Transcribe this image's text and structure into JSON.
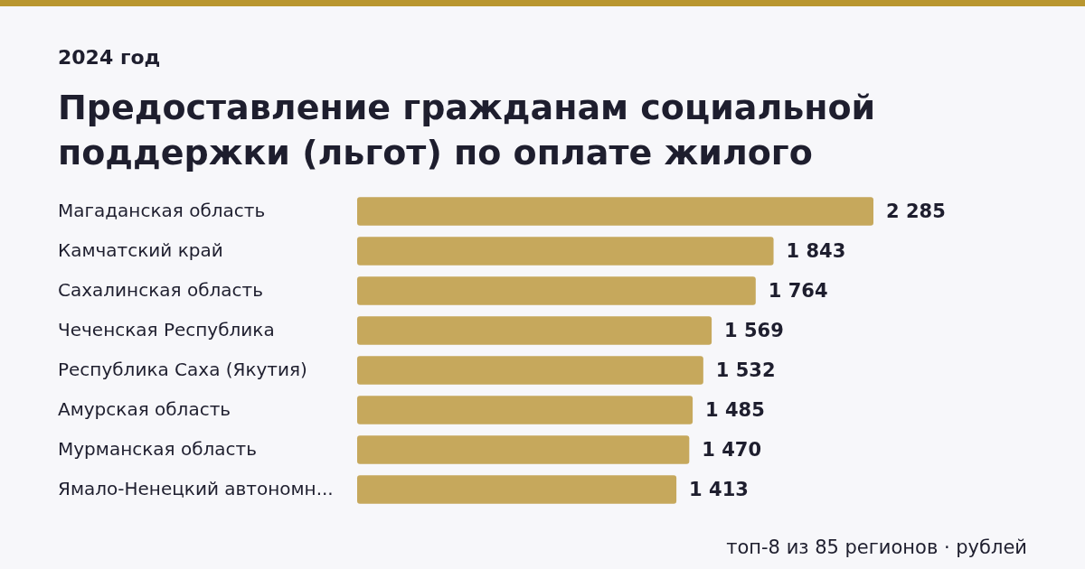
{
  "chart_data": {
    "type": "bar",
    "orientation": "horizontal",
    "subtitle": "2024 год",
    "title": "Предоставление гражданам социальной поддержки (льгот) по оплате жилого",
    "categories": [
      "Магаданская область",
      "Камчатский край",
      "Сахалинская область",
      "Чеченская Республика",
      "Республика Саха (Якутия)",
      "Амурская область",
      "Мурманская область",
      "Ямало-Ненецкий автономн..."
    ],
    "values": [
      2285,
      1843,
      1764,
      1569,
      1532,
      1485,
      1470,
      1413
    ],
    "value_labels": [
      "2 285",
      "1 843",
      "1 764",
      "1 569",
      "1 532",
      "1 485",
      "1 470",
      "1 413"
    ],
    "color": "#c6a85c",
    "annotations": [
      "топ-8 из 85 регионов · рублей"
    ]
  }
}
